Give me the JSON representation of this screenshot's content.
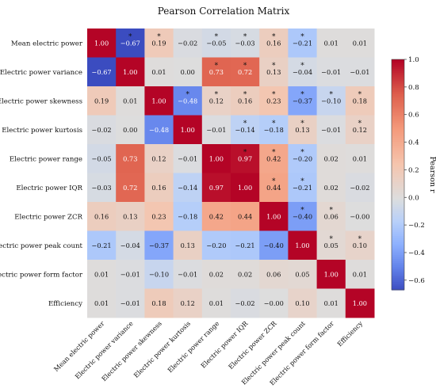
{
  "chart_data": {
    "type": "heatmap",
    "title": "Pearson Correlation Matrix",
    "labels": [
      "Mean electric power",
      "Electric power variance",
      "Electric power skewness",
      "Electric power kurtosis",
      "Electric power range",
      "Electric power IQR",
      "Electric power ZCR",
      "Electric power peak count",
      "Electric power form factor",
      "Efficiency"
    ],
    "values": [
      [
        1.0,
        -0.67,
        0.19,
        -0.02,
        -0.05,
        -0.03,
        0.16,
        -0.21,
        0.01,
        0.01
      ],
      [
        -0.67,
        1.0,
        0.01,
        0.0,
        0.73,
        0.72,
        0.13,
        -0.04,
        -0.01,
        -0.01
      ],
      [
        0.19,
        0.01,
        1.0,
        -0.48,
        0.12,
        0.16,
        0.23,
        -0.37,
        -0.1,
        0.18
      ],
      [
        -0.02,
        0.0,
        -0.48,
        1.0,
        -0.01,
        -0.14,
        -0.18,
        0.13,
        -0.01,
        0.12
      ],
      [
        -0.05,
        0.73,
        0.12,
        -0.01,
        1.0,
        0.97,
        0.42,
        -0.2,
        0.02,
        0.01
      ],
      [
        -0.03,
        0.72,
        0.16,
        -0.14,
        0.97,
        1.0,
        0.44,
        -0.21,
        0.02,
        -0.02
      ],
      [
        0.16,
        0.13,
        0.23,
        -0.18,
        0.42,
        0.44,
        1.0,
        -0.4,
        0.06,
        -0.0
      ],
      [
        -0.21,
        -0.04,
        -0.37,
        0.13,
        -0.2,
        -0.21,
        -0.4,
        1.0,
        0.05,
        0.1
      ],
      [
        0.01,
        -0.01,
        -0.1,
        -0.01,
        0.02,
        0.02,
        0.06,
        0.05,
        1.0,
        0.01
      ],
      [
        0.01,
        -0.01,
        0.18,
        0.12,
        0.01,
        -0.02,
        -0.0,
        0.1,
        0.01,
        1.0
      ]
    ],
    "significance_marker": "*",
    "significant_cells": [
      [
        0,
        1
      ],
      [
        0,
        2
      ],
      [
        0,
        4
      ],
      [
        0,
        5
      ],
      [
        0,
        6
      ],
      [
        0,
        7
      ],
      [
        1,
        4
      ],
      [
        1,
        5
      ],
      [
        1,
        6
      ],
      [
        1,
        7
      ],
      [
        2,
        3
      ],
      [
        2,
        4
      ],
      [
        2,
        5
      ],
      [
        2,
        6
      ],
      [
        2,
        7
      ],
      [
        2,
        8
      ],
      [
        2,
        9
      ],
      [
        3,
        5
      ],
      [
        3,
        6
      ],
      [
        3,
        7
      ],
      [
        3,
        9
      ],
      [
        4,
        5
      ],
      [
        4,
        6
      ],
      [
        4,
        7
      ],
      [
        5,
        6
      ],
      [
        5,
        7
      ],
      [
        6,
        7
      ],
      [
        6,
        8
      ],
      [
        7,
        8
      ],
      [
        7,
        9
      ]
    ],
    "colorbar": {
      "label": "Pearson r",
      "range": [
        -0.67,
        1.0
      ],
      "ticks": [
        -0.6,
        -0.4,
        -0.2,
        0.0,
        0.2,
        0.4,
        0.6,
        0.8,
        1.0
      ],
      "tick_labels": [
        "−0.6",
        "−0.4",
        "−0.2",
        "0.0",
        "0.2",
        "0.4",
        "0.6",
        "0.8",
        "1.0"
      ],
      "placement": "right"
    },
    "colormap": "coolwarm",
    "value_format": "2 decimals, unicode minus sign",
    "grid": false
  }
}
